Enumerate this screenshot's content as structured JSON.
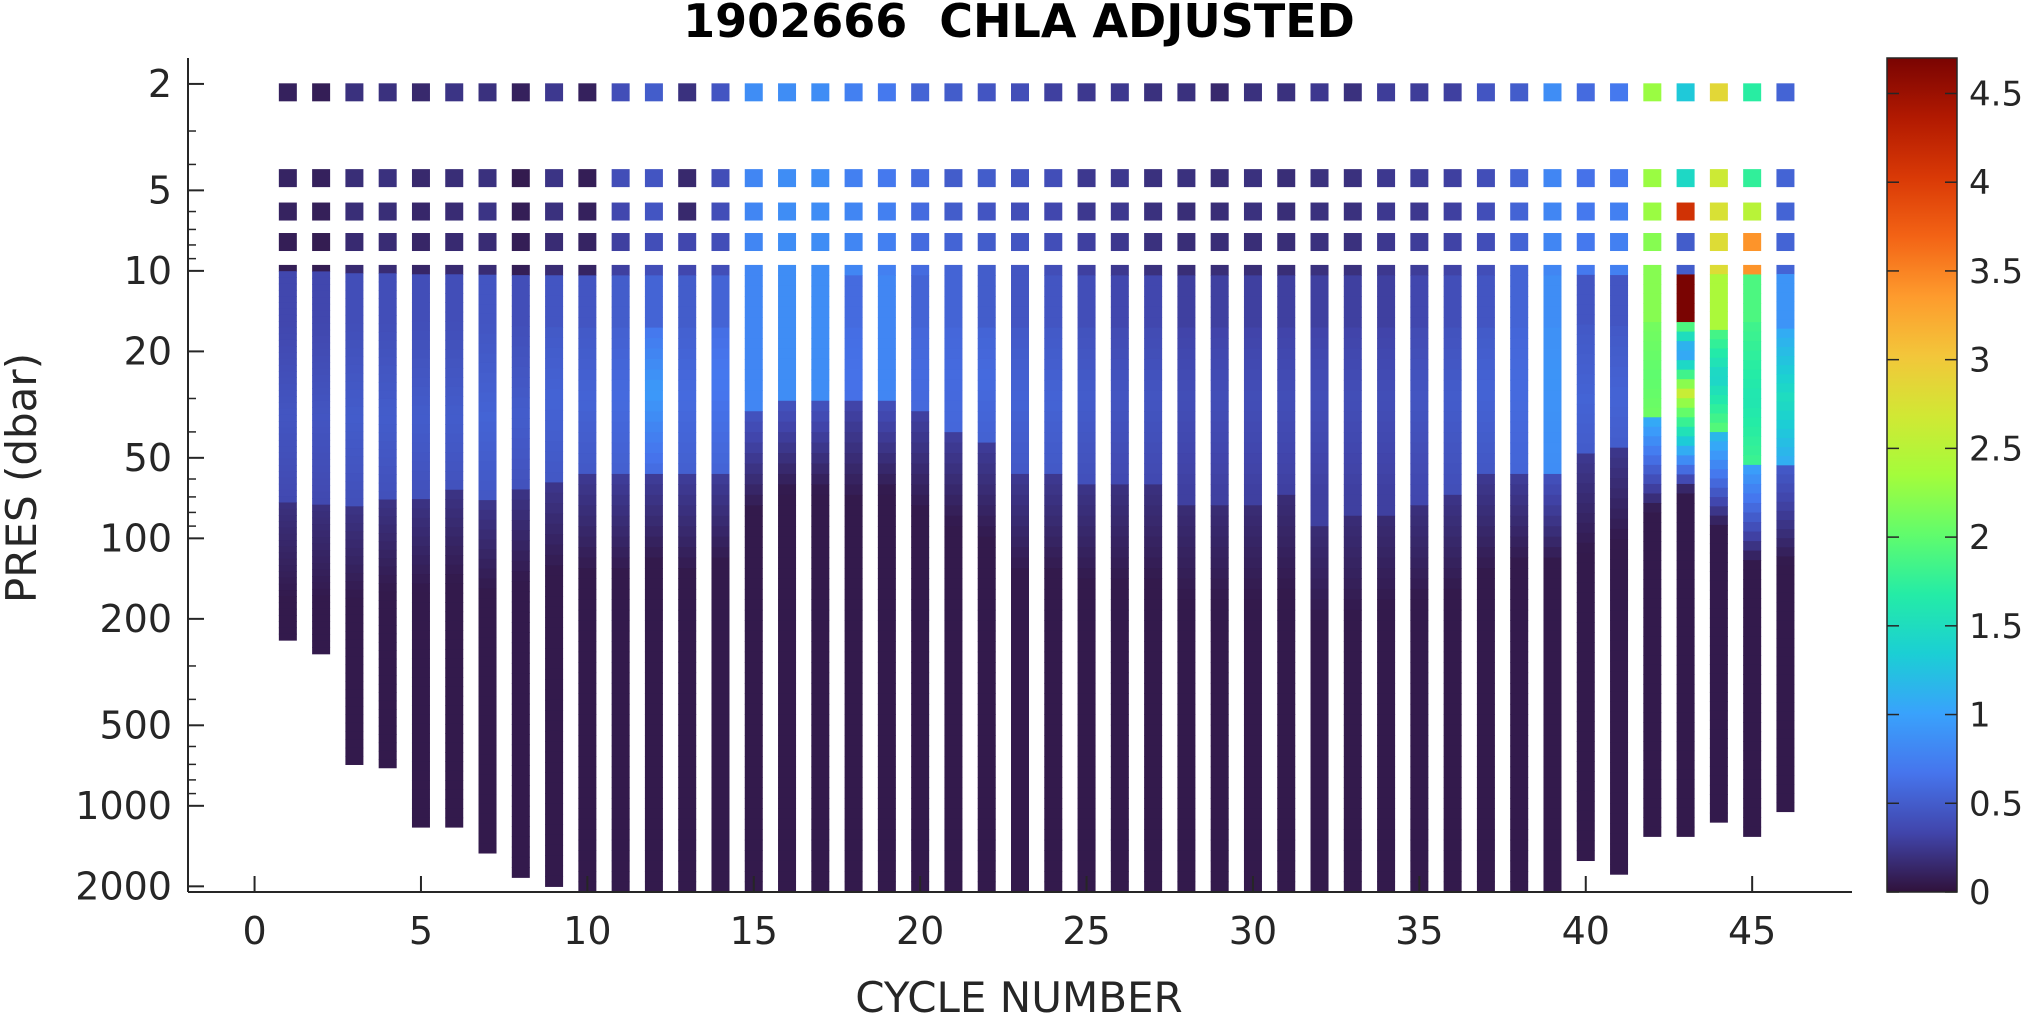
{
  "chart_data": {
    "type": "heatmap",
    "title": "1902666  CHLA ADJUSTED",
    "xlabel": "CYCLE NUMBER",
    "ylabel": "PRES (dbar)",
    "xlim": [
      -2,
      48
    ],
    "xticks": [
      0,
      5,
      10,
      15,
      20,
      25,
      30,
      35,
      40,
      45
    ],
    "xtick_labels": [
      "0",
      "5",
      "10",
      "15",
      "20",
      "25",
      "30",
      "35",
      "40",
      "45"
    ],
    "y_scale": "log",
    "y_direction": "reversed",
    "ylim": [
      1.6,
      2100
    ],
    "yticks": [
      2,
      5,
      10,
      20,
      50,
      100,
      200,
      500,
      1000,
      2000
    ],
    "ytick_labels": [
      "2",
      "5",
      "10",
      "20",
      "50",
      "100",
      "200",
      "500",
      "1000",
      "2000"
    ],
    "colorbar": {
      "colormap": "turbo",
      "clim": [
        0,
        4.7
      ],
      "ticks": [
        0,
        0.5,
        1,
        1.5,
        2,
        2.5,
        3,
        3.5,
        4,
        4.5
      ],
      "tick_labels": [
        "0",
        "0.5",
        "1",
        "1.5",
        "2",
        "2.5",
        "3",
        "3.5",
        "4",
        "4.5"
      ],
      "position": "right"
    },
    "grid": false,
    "box": false,
    "series": [
      {
        "cycle": 1,
        "max_pres": 240,
        "surface": [
          0.1,
          0.12,
          0.11,
          0.08
        ],
        "subsurface": 0.35,
        "dcm_pres": 35,
        "dcm_value": 0.45,
        "mld": 75
      },
      {
        "cycle": 2,
        "max_pres": 270,
        "surface": [
          0.08,
          0.1,
          0.09,
          0.07
        ],
        "subsurface": 0.35,
        "dcm_pres": 35,
        "dcm_value": 0.45,
        "mld": 75
      },
      {
        "cycle": 3,
        "max_pres": 700,
        "surface": [
          0.2,
          0.18,
          0.18,
          0.16
        ],
        "subsurface": 0.4,
        "dcm_pres": 35,
        "dcm_value": 0.5,
        "mld": 75
      },
      {
        "cycle": 4,
        "max_pres": 720,
        "surface": [
          0.2,
          0.2,
          0.18,
          0.17
        ],
        "subsurface": 0.4,
        "dcm_pres": 35,
        "dcm_value": 0.5,
        "mld": 70
      },
      {
        "cycle": 5,
        "max_pres": 1200,
        "surface": [
          0.15,
          0.15,
          0.14,
          0.13
        ],
        "subsurface": 0.4,
        "dcm_pres": 35,
        "dcm_value": 0.5,
        "mld": 70
      },
      {
        "cycle": 6,
        "max_pres": 1200,
        "surface": [
          0.22,
          0.18,
          0.17,
          0.16
        ],
        "subsurface": 0.4,
        "dcm_pres": 35,
        "dcm_value": 0.5,
        "mld": 65
      },
      {
        "cycle": 7,
        "max_pres": 1500,
        "surface": [
          0.2,
          0.2,
          0.22,
          0.17
        ],
        "subsurface": 0.45,
        "dcm_pres": 35,
        "dcm_value": 0.55,
        "mld": 70
      },
      {
        "cycle": 8,
        "max_pres": 1850,
        "surface": [
          0.1,
          0.06,
          0.08,
          0.08
        ],
        "subsurface": 0.4,
        "dcm_pres": 35,
        "dcm_value": 0.5,
        "mld": 65
      },
      {
        "cycle": 9,
        "max_pres": 2000,
        "surface": [
          0.25,
          0.22,
          0.2,
          0.17
        ],
        "subsurface": 0.45,
        "dcm_pres": 30,
        "dcm_value": 0.55,
        "mld": 60
      },
      {
        "cycle": 10,
        "max_pres": 2100,
        "surface": [
          0.1,
          0.08,
          0.1,
          0.12
        ],
        "subsurface": 0.45,
        "dcm_pres": 30,
        "dcm_value": 0.55,
        "mld": 60
      },
      {
        "cycle": 11,
        "max_pres": 2100,
        "surface": [
          0.4,
          0.4,
          0.35,
          0.3
        ],
        "subsurface": 0.5,
        "dcm_pres": 30,
        "dcm_value": 0.6,
        "mld": 60
      },
      {
        "cycle": 12,
        "max_pres": 2100,
        "surface": [
          0.5,
          0.45,
          0.45,
          0.4
        ],
        "subsurface": 0.55,
        "dcm_pres": 28,
        "dcm_value": 0.95,
        "mld": 55
      },
      {
        "cycle": 13,
        "max_pres": 2100,
        "surface": [
          0.2,
          0.15,
          0.15,
          0.35
        ],
        "subsurface": 0.5,
        "dcm_pres": 30,
        "dcm_value": 0.6,
        "mld": 60
      },
      {
        "cycle": 14,
        "max_pres": 2100,
        "surface": [
          0.45,
          0.4,
          0.4,
          0.4
        ],
        "subsurface": 0.55,
        "dcm_pres": 25,
        "dcm_value": 0.7,
        "mld": 55
      },
      {
        "cycle": 15,
        "max_pres": 2100,
        "surface": [
          0.85,
          0.8,
          0.8,
          0.8
        ],
        "subsurface": 0.8,
        "dcm_pres": 20,
        "dcm_value": 0.8,
        "mld": 35
      },
      {
        "cycle": 16,
        "max_pres": 2100,
        "surface": [
          0.85,
          0.85,
          0.85,
          0.85
        ],
        "subsurface": 0.85,
        "dcm_pres": 20,
        "dcm_value": 0.85,
        "mld": 30
      },
      {
        "cycle": 17,
        "max_pres": 2100,
        "surface": [
          0.85,
          0.85,
          0.85,
          0.85
        ],
        "subsurface": 0.85,
        "dcm_pres": 20,
        "dcm_value": 0.85,
        "mld": 30
      },
      {
        "cycle": 18,
        "max_pres": 2100,
        "surface": [
          0.75,
          0.75,
          0.8,
          0.8
        ],
        "subsurface": 0.6,
        "dcm_pres": 25,
        "dcm_value": 0.65,
        "mld": 32
      },
      {
        "cycle": 19,
        "max_pres": 2100,
        "surface": [
          0.7,
          0.7,
          0.75,
          0.75
        ],
        "subsurface": 0.8,
        "dcm_pres": 20,
        "dcm_value": 0.8,
        "mld": 30
      },
      {
        "cycle": 20,
        "max_pres": 2100,
        "surface": [
          0.55,
          0.6,
          0.6,
          0.6
        ],
        "subsurface": 0.55,
        "dcm_pres": 25,
        "dcm_value": 0.6,
        "mld": 35
      },
      {
        "cycle": 21,
        "max_pres": 2100,
        "surface": [
          0.5,
          0.5,
          0.5,
          0.55
        ],
        "subsurface": 0.55,
        "dcm_pres": 25,
        "dcm_value": 0.6,
        "mld": 40
      },
      {
        "cycle": 22,
        "max_pres": 2100,
        "surface": [
          0.45,
          0.5,
          0.45,
          0.5
        ],
        "subsurface": 0.5,
        "dcm_pres": 25,
        "dcm_value": 0.6,
        "mld": 45
      },
      {
        "cycle": 23,
        "max_pres": 2100,
        "surface": [
          0.4,
          0.45,
          0.4,
          0.45
        ],
        "subsurface": 0.45,
        "dcm_pres": 30,
        "dcm_value": 0.55,
        "mld": 60
      },
      {
        "cycle": 24,
        "max_pres": 2100,
        "surface": [
          0.3,
          0.4,
          0.35,
          0.4
        ],
        "subsurface": 0.45,
        "dcm_pres": 30,
        "dcm_value": 0.55,
        "mld": 60
      },
      {
        "cycle": 25,
        "max_pres": 2100,
        "surface": [
          0.25,
          0.25,
          0.25,
          0.3
        ],
        "subsurface": 0.4,
        "dcm_pres": 30,
        "dcm_value": 0.5,
        "mld": 65
      },
      {
        "cycle": 26,
        "max_pres": 2100,
        "surface": [
          0.25,
          0.25,
          0.25,
          0.25
        ],
        "subsurface": 0.35,
        "dcm_pres": 30,
        "dcm_value": 0.45,
        "mld": 65
      },
      {
        "cycle": 27,
        "max_pres": 2100,
        "surface": [
          0.2,
          0.2,
          0.2,
          0.2
        ],
        "subsurface": 0.35,
        "dcm_pres": 30,
        "dcm_value": 0.45,
        "mld": 65
      },
      {
        "cycle": 28,
        "max_pres": 2100,
        "surface": [
          0.2,
          0.2,
          0.18,
          0.18
        ],
        "subsurface": 0.3,
        "dcm_pres": 30,
        "dcm_value": 0.4,
        "mld": 75
      },
      {
        "cycle": 29,
        "max_pres": 2100,
        "surface": [
          0.15,
          0.18,
          0.18,
          0.18
        ],
        "subsurface": 0.3,
        "dcm_pres": 30,
        "dcm_value": 0.4,
        "mld": 75
      },
      {
        "cycle": 30,
        "max_pres": 2100,
        "surface": [
          0.2,
          0.2,
          0.2,
          0.18
        ],
        "subsurface": 0.3,
        "dcm_pres": 30,
        "dcm_value": 0.4,
        "mld": 75
      },
      {
        "cycle": 31,
        "max_pres": 2100,
        "surface": [
          0.2,
          0.18,
          0.18,
          0.18
        ],
        "subsurface": 0.3,
        "dcm_pres": 30,
        "dcm_value": 0.4,
        "mld": 70
      },
      {
        "cycle": 32,
        "max_pres": 2100,
        "surface": [
          0.25,
          0.2,
          0.2,
          0.2
        ],
        "subsurface": 0.3,
        "dcm_pres": 30,
        "dcm_value": 0.4,
        "mld": 90
      },
      {
        "cycle": 33,
        "max_pres": 2100,
        "surface": [
          0.2,
          0.2,
          0.2,
          0.2
        ],
        "subsurface": 0.3,
        "dcm_pres": 30,
        "dcm_value": 0.4,
        "mld": 85
      },
      {
        "cycle": 34,
        "max_pres": 2100,
        "surface": [
          0.28,
          0.25,
          0.25,
          0.25
        ],
        "subsurface": 0.3,
        "dcm_pres": 30,
        "dcm_value": 0.4,
        "mld": 80
      },
      {
        "cycle": 35,
        "max_pres": 2100,
        "surface": [
          0.28,
          0.28,
          0.25,
          0.28
        ],
        "subsurface": 0.35,
        "dcm_pres": 30,
        "dcm_value": 0.45,
        "mld": 75
      },
      {
        "cycle": 36,
        "max_pres": 2100,
        "surface": [
          0.3,
          0.3,
          0.3,
          0.32
        ],
        "subsurface": 0.4,
        "dcm_pres": 30,
        "dcm_value": 0.5,
        "mld": 70
      },
      {
        "cycle": 37,
        "max_pres": 2100,
        "surface": [
          0.45,
          0.4,
          0.4,
          0.4
        ],
        "subsurface": 0.45,
        "dcm_pres": 28,
        "dcm_value": 0.55,
        "mld": 60
      },
      {
        "cycle": 38,
        "max_pres": 2100,
        "surface": [
          0.5,
          0.55,
          0.55,
          0.55
        ],
        "subsurface": 0.55,
        "dcm_pres": 28,
        "dcm_value": 0.6,
        "mld": 55
      },
      {
        "cycle": 39,
        "max_pres": 2100,
        "surface": [
          0.85,
          0.8,
          0.8,
          0.8
        ],
        "subsurface": 0.85,
        "dcm_pres": 25,
        "dcm_value": 0.9,
        "mld": 55
      },
      {
        "cycle": 40,
        "max_pres": 1600,
        "surface": [
          0.6,
          0.65,
          0.7,
          0.7
        ],
        "subsurface": 0.45,
        "dcm_pres": 30,
        "dcm_value": 0.55,
        "mld": 50
      },
      {
        "cycle": 41,
        "max_pres": 1800,
        "surface": [
          0.7,
          0.7,
          0.75,
          0.75
        ],
        "subsurface": 0.45,
        "dcm_pres": 30,
        "dcm_value": 0.55,
        "mld": 45
      },
      {
        "cycle": 42,
        "max_pres": 1300,
        "surface": [
          2.3,
          2.3,
          2.3,
          2.2
        ],
        "subsurface": 2.2,
        "dcm_pres": 25,
        "dcm_value": 2.0,
        "mld": 35
      },
      {
        "cycle": 43,
        "max_pres": 1300,
        "surface": [
          1.3,
          1.45,
          4.1,
          0.5
        ],
        "subsurface": 4.7,
        "dcm_pres": 20,
        "dcm_value": 0.9,
        "mld": 30
      },
      {
        "cycle": 44,
        "max_pres": 1150,
        "surface": [
          2.85,
          2.65,
          2.75,
          2.8
        ],
        "subsurface": 2.4,
        "dcm_pres": 25,
        "dcm_value": 1.4,
        "mld": 40
      },
      {
        "cycle": 45,
        "max_pres": 1300,
        "surface": [
          1.7,
          1.75,
          2.5,
          3.4
        ],
        "subsurface": 1.9,
        "dcm_pres": 30,
        "dcm_value": 1.6,
        "mld": 55
      },
      {
        "cycle": 46,
        "max_pres": 1050,
        "surface": [
          0.55,
          0.55,
          0.55,
          0.55
        ],
        "subsurface": 0.9,
        "dcm_pres": 30,
        "dcm_value": 1.5,
        "mld": 55
      }
    ]
  }
}
